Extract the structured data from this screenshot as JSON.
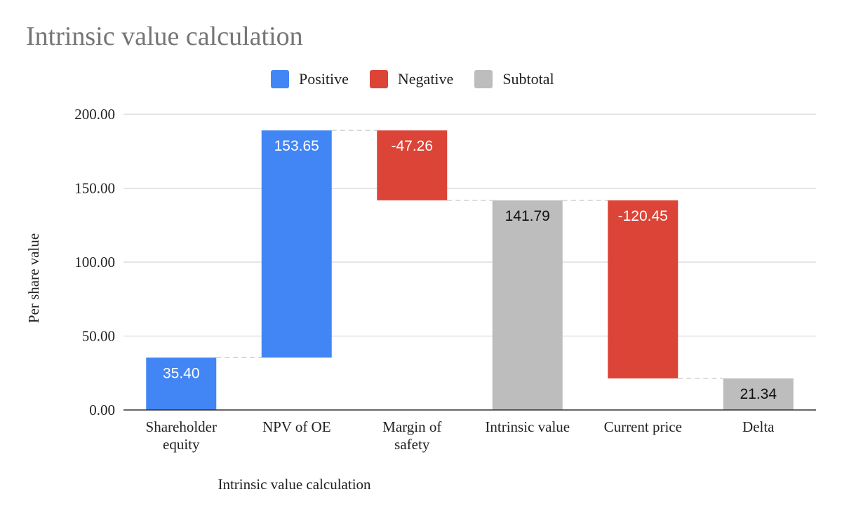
{
  "chart_data": {
    "type": "waterfall",
    "title": "Intrinsic value calculation",
    "xlabel": "Intrinsic value calculation",
    "ylabel": "Per share value",
    "ylim": [
      0,
      200
    ],
    "yticks": [
      "0.00",
      "50.00",
      "100.00",
      "150.00",
      "200.00"
    ],
    "ytick_values": [
      0,
      50,
      100,
      150,
      200
    ],
    "legend": [
      {
        "label": "Positive",
        "color": "#4285f4"
      },
      {
        "label": "Negative",
        "color": "#db4437"
      },
      {
        "label": "Subtotal",
        "color": "#bdbdbd"
      }
    ],
    "steps": [
      {
        "category": "Shareholder equity",
        "lines": [
          "Shareholder",
          "equity"
        ],
        "value": 35.4,
        "label": "35.40",
        "kind": "positive",
        "start": 0,
        "end": 35.4
      },
      {
        "category": "NPV of OE",
        "lines": [
          "NPV of OE"
        ],
        "value": 153.65,
        "label": "153.65",
        "kind": "positive",
        "start": 35.4,
        "end": 189.05
      },
      {
        "category": "Margin of safety",
        "lines": [
          "Margin of",
          "safety"
        ],
        "value": -47.26,
        "label": "-47.26",
        "kind": "negative",
        "start": 189.05,
        "end": 141.79
      },
      {
        "category": "Intrinsic value",
        "lines": [
          "Intrinsic value"
        ],
        "value": 141.79,
        "label": "141.79",
        "kind": "subtotal",
        "start": 0,
        "end": 141.79
      },
      {
        "category": "Current price",
        "lines": [
          "Current price"
        ],
        "value": -120.45,
        "label": "-120.45",
        "kind": "negative",
        "start": 141.79,
        "end": 21.34
      },
      {
        "category": "Delta",
        "lines": [
          "Delta"
        ],
        "value": 21.34,
        "label": "21.34",
        "kind": "subtotal",
        "start": 0,
        "end": 21.34
      }
    ],
    "colors": {
      "positive": "#4285f4",
      "negative": "#db4437",
      "subtotal": "#bdbdbd",
      "grid": "#cccccc",
      "connector": "#cfcfcf",
      "axis": "#333333"
    }
  }
}
